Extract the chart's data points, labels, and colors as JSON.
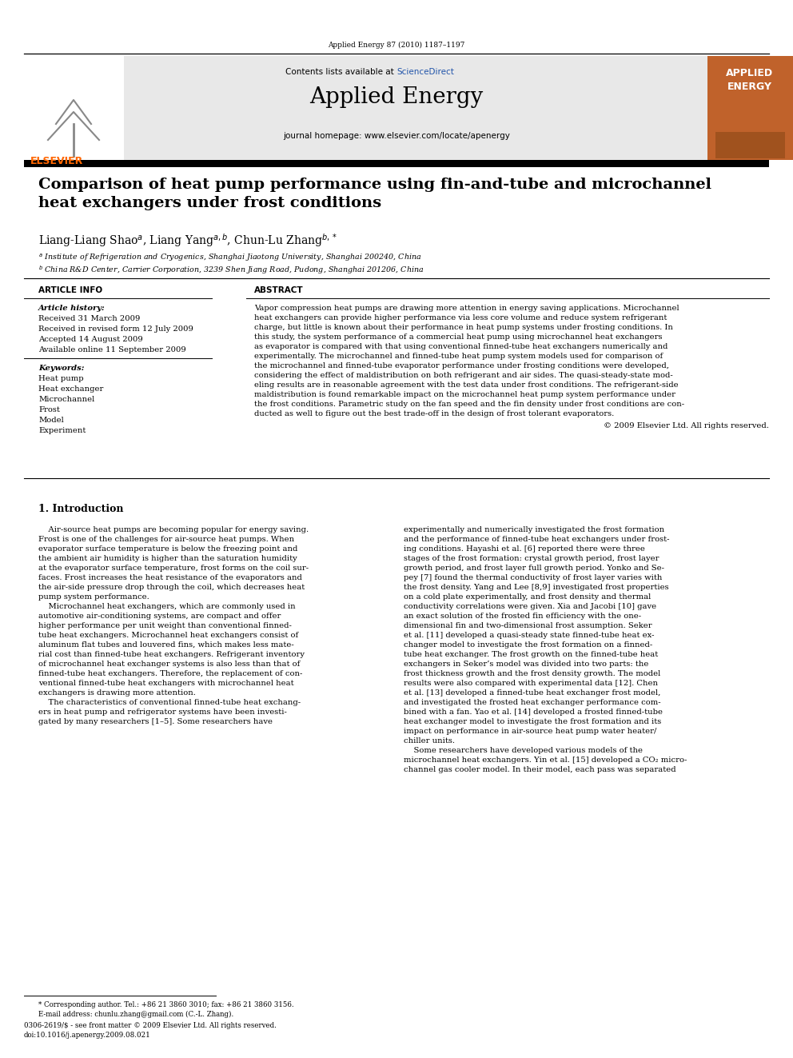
{
  "page_width": 9.92,
  "page_height": 13.23,
  "background_color": "#ffffff",
  "top_citation": "Applied Energy 87 (2010) 1187–1197",
  "journal_name": "Applied Energy",
  "journal_homepage": "journal homepage: www.elsevier.com/locate/apenergy",
  "contents_line": "Contents lists available at ScienceDirect",
  "sciencedirect_color": "#2255aa",
  "elsevier_color": "#FF6600",
  "applied_energy_box_color": "#C0622B",
  "header_bg": "#e8e8e8",
  "paper_title": "Comparison of heat pump performance using fin-and-tube and microchannel\nheat exchangers under frost conditions",
  "article_info_header": "ARTICLE INFO",
  "abstract_header": "ABSTRACT",
  "article_history_label": "Article history:",
  "received_1": "Received 31 March 2009",
  "received_2": "Received in revised form 12 July 2009",
  "accepted": "Accepted 14 August 2009",
  "available": "Available online 11 September 2009",
  "keywords_label": "Keywords:",
  "keywords": [
    "Heat pump",
    "Heat exchanger",
    "Microchannel",
    "Frost",
    "Model",
    "Experiment"
  ],
  "copyright_line": "© 2009 Elsevier Ltd. All rights reserved.",
  "section1_title": "1. Introduction",
  "footnote_star": "* Corresponding author. Tel.: +86 21 3860 3010; fax: +86 21 3860 3156.",
  "footnote_email": "E-mail address: chunlu.zhang@gmail.com (C.-L. Zhang).",
  "footnote_issn": "0306-2619/$ - see front matter © 2009 Elsevier Ltd. All rights reserved.",
  "footnote_doi": "doi:10.1016/j.apenergy.2009.08.021",
  "abstract_lines": [
    "Vapor compression heat pumps are drawing more attention in energy saving applications. Microchannel",
    "heat exchangers can provide higher performance via less core volume and reduce system refrigerant",
    "charge, but little is known about their performance in heat pump systems under frosting conditions. In",
    "this study, the system performance of a commercial heat pump using microchannel heat exchangers",
    "as evaporator is compared with that using conventional finned-tube heat exchangers numerically and",
    "experimentally. The microchannel and finned-tube heat pump system models used for comparison of",
    "the microchannel and finned-tube evaporator performance under frosting conditions were developed,",
    "considering the effect of maldistribution on both refrigerant and air sides. The quasi-steady-state mod-",
    "eling results are in reasonable agreement with the test data under frost conditions. The refrigerant-side",
    "maldistribution is found remarkable impact on the microchannel heat pump system performance under",
    "the frost conditions. Parametric study on the fan speed and the fin density under frost conditions are con-",
    "ducted as well to figure out the best trade-off in the design of frost tolerant evaporators."
  ],
  "col1_lines": [
    "    Air-source heat pumps are becoming popular for energy saving.",
    "Frost is one of the challenges for air-source heat pumps. When",
    "evaporator surface temperature is below the freezing point and",
    "the ambient air humidity is higher than the saturation humidity",
    "at the evaporator surface temperature, frost forms on the coil sur-",
    "faces. Frost increases the heat resistance of the evaporators and",
    "the air-side pressure drop through the coil, which decreases heat",
    "pump system performance.",
    "    Microchannel heat exchangers, which are commonly used in",
    "automotive air-conditioning systems, are compact and offer",
    "higher performance per unit weight than conventional finned-",
    "tube heat exchangers. Microchannel heat exchangers consist of",
    "aluminum flat tubes and louvered fins, which makes less mate-",
    "rial cost than finned-tube heat exchangers. Refrigerant inventory",
    "of microchannel heat exchanger systems is also less than that of",
    "finned-tube heat exchangers. Therefore, the replacement of con-",
    "ventional finned-tube heat exchangers with microchannel heat",
    "exchangers is drawing more attention.",
    "    The characteristics of conventional finned-tube heat exchang-",
    "ers in heat pump and refrigerator systems have been investi-",
    "gated by many researchers [1–5]. Some researchers have"
  ],
  "col2_lines": [
    "experimentally and numerically investigated the frost formation",
    "and the performance of finned-tube heat exchangers under frost-",
    "ing conditions. Hayashi et al. [6] reported there were three",
    "stages of the frost formation: crystal growth period, frost layer",
    "growth period, and frost layer full growth period. Yonko and Se-",
    "pey [7] found the thermal conductivity of frost layer varies with",
    "the frost density. Yang and Lee [8,9] investigated frost properties",
    "on a cold plate experimentally, and frost density and thermal",
    "conductivity correlations were given. Xia and Jacobi [10] gave",
    "an exact solution of the frosted fin efficiency with the one-",
    "dimensional fin and two-dimensional frost assumption. Seker",
    "et al. [11] developed a quasi-steady state finned-tube heat ex-",
    "changer model to investigate the frost formation on a finned-",
    "tube heat exchanger. The frost growth on the finned-tube heat",
    "exchangers in Seker’s model was divided into two parts: the",
    "frost thickness growth and the frost density growth. The model",
    "results were also compared with experimental data [12]. Chen",
    "et al. [13] developed a finned-tube heat exchanger frost model,",
    "and investigated the frosted heat exchanger performance com-",
    "bined with a fan. Yao et al. [14] developed a frosted finned-tube",
    "heat exchanger model to investigate the frost formation and its",
    "impact on performance in air-source heat pump water heater/",
    "chiller units.",
    "    Some researchers have developed various models of the",
    "microchannel heat exchangers. Yin et al. [15] developed a CO₂ micro-",
    "channel gas cooler model. In their model, each pass was separated"
  ]
}
